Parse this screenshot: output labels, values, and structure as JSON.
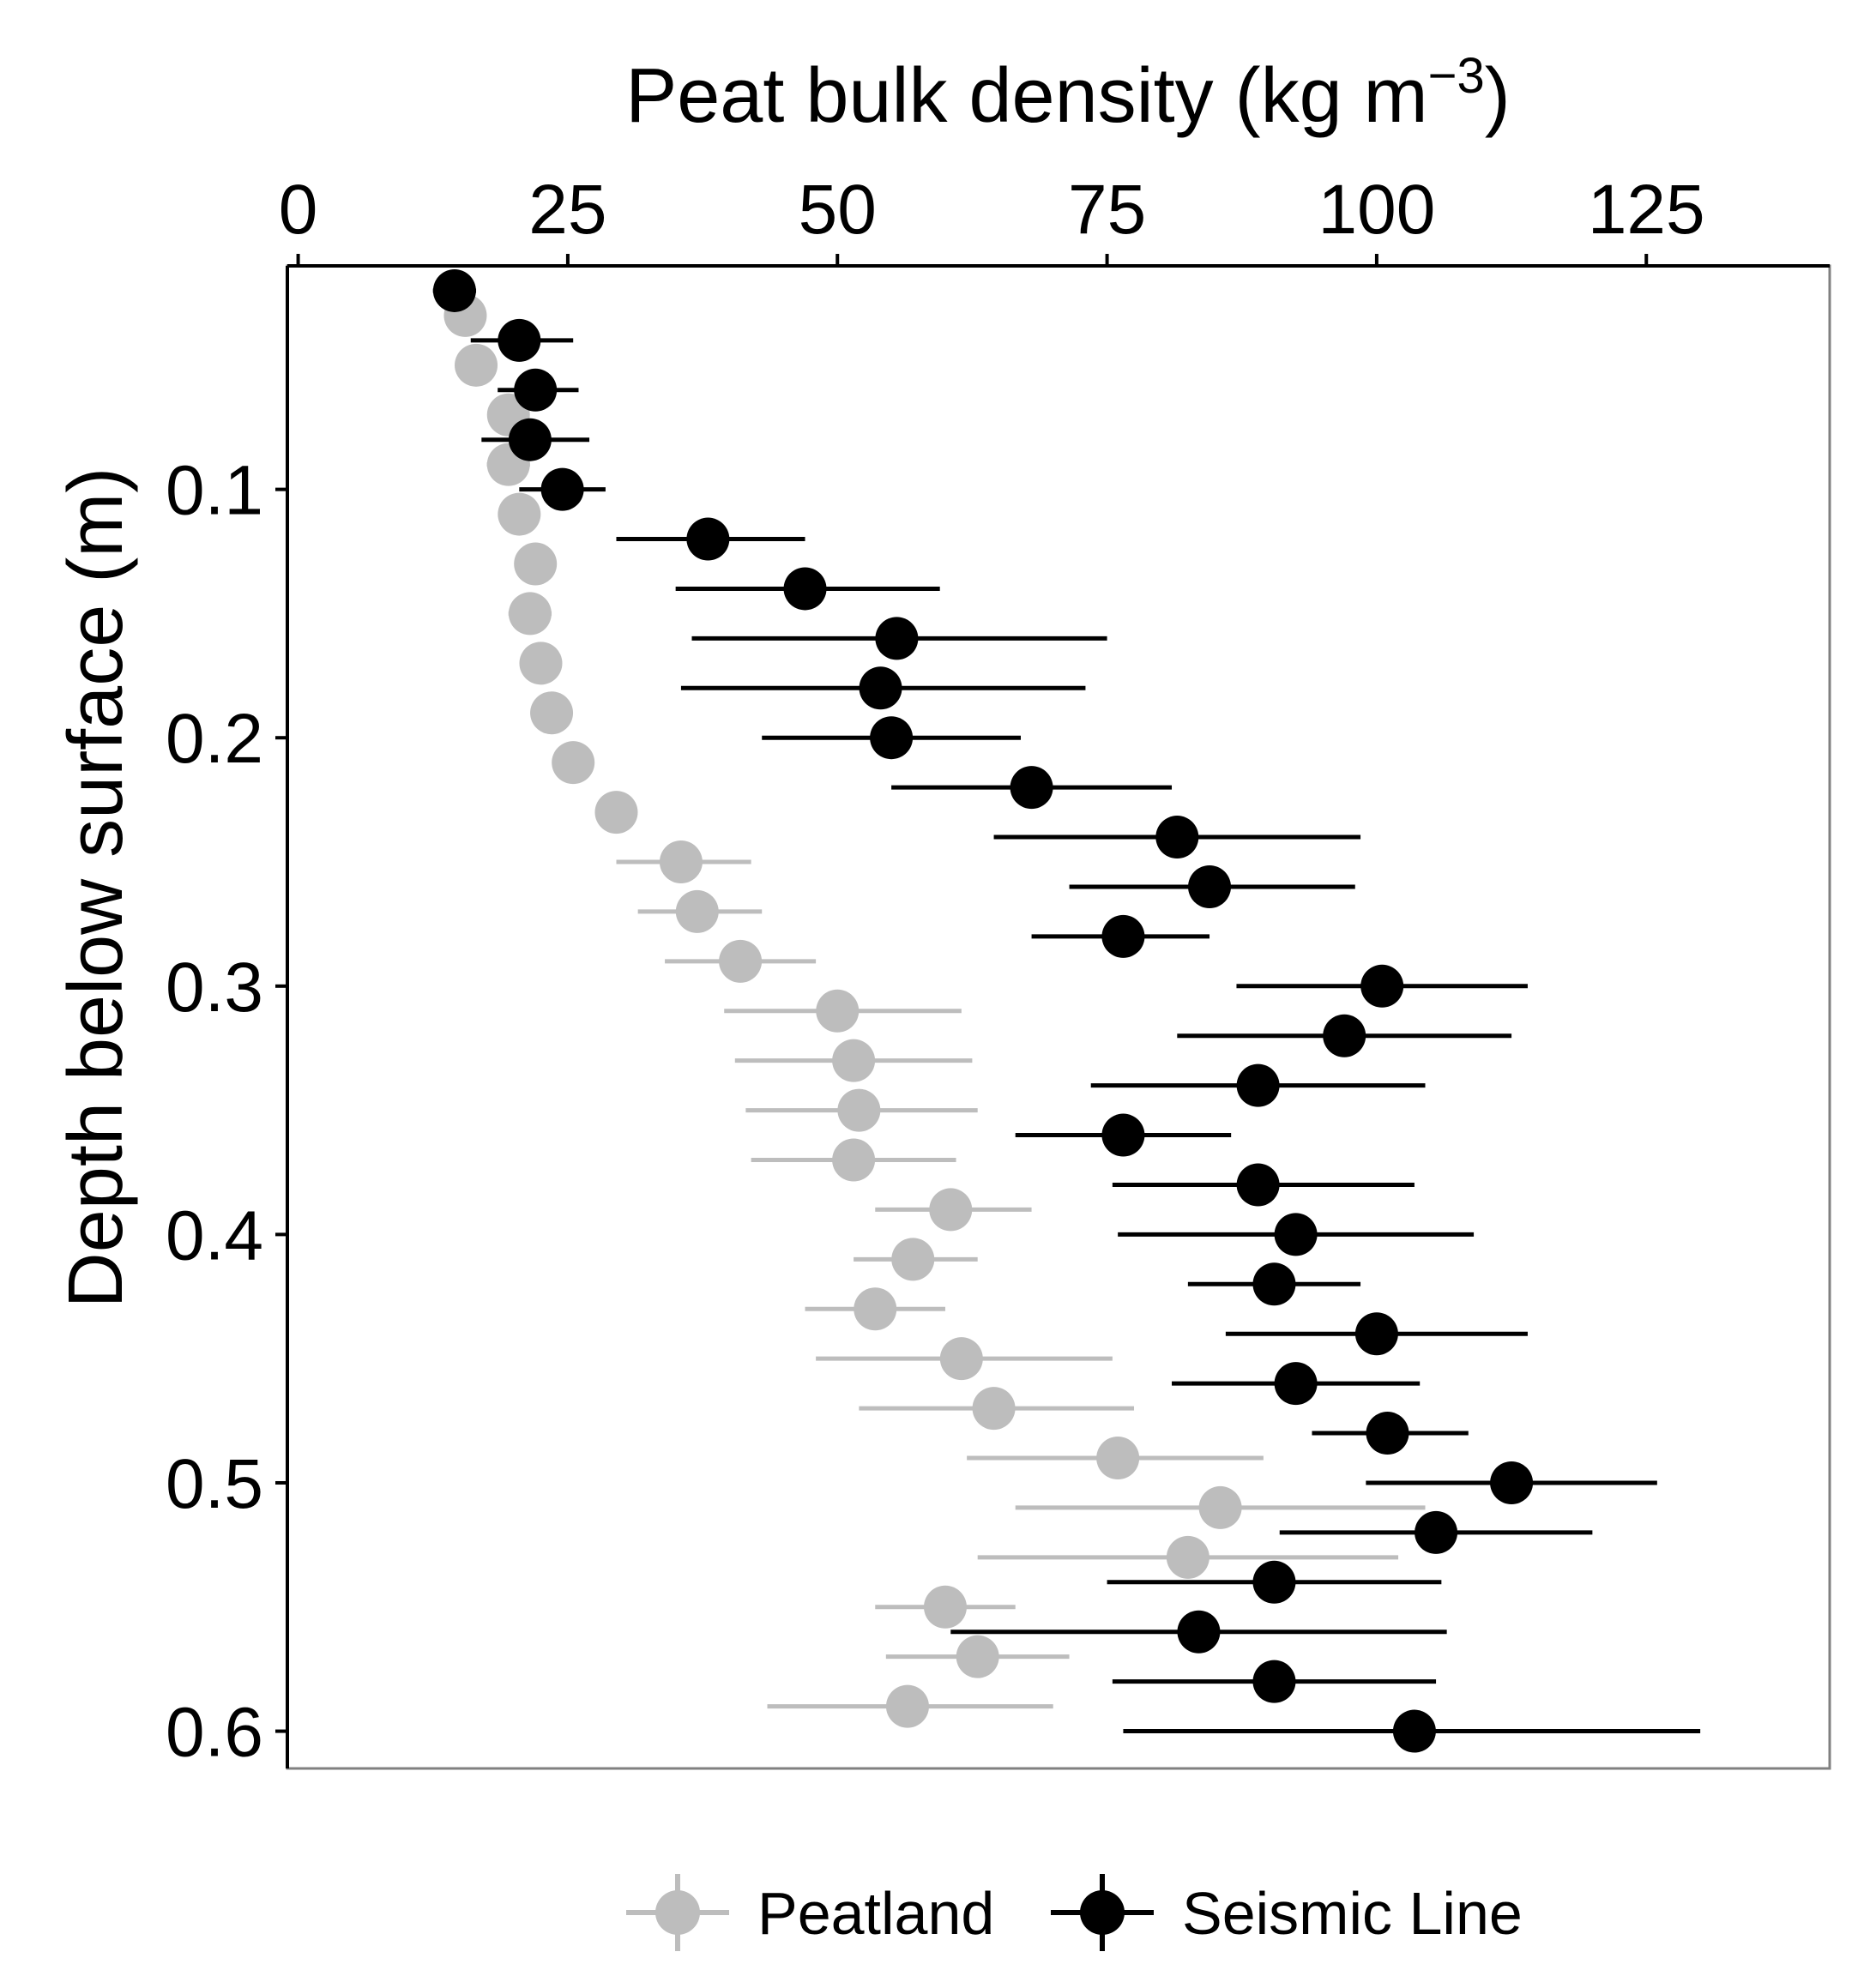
{
  "chart_data": {
    "type": "scatter",
    "subtype": "point-with-horizontal-error-bars",
    "x_axis": {
      "label_prefix": "Peat bulk density (kg m",
      "label_superscript": "−3",
      "label_suffix": ")",
      "position": "top",
      "range": [
        -1,
        142
      ],
      "ticks": [
        0,
        25,
        50,
        75,
        100,
        125
      ],
      "tick_labels": [
        "0",
        "25",
        "50",
        "75",
        "100",
        "125"
      ]
    },
    "y_axis": {
      "label": "Depth below surface (m)",
      "reversed": true,
      "range": [
        0.01,
        0.615
      ],
      "ticks": [
        0.1,
        0.2,
        0.3,
        0.4,
        0.5,
        0.6
      ],
      "tick_labels": [
        "0.1",
        "0.2",
        "0.3",
        "0.4",
        "0.5",
        "0.6"
      ]
    },
    "grid": false,
    "legend_position": "bottom",
    "series": [
      {
        "name": "Peatland",
        "color": "#bdbdbd",
        "points": [
          {
            "depth": 0.03,
            "mean": 15.5,
            "lo": 14.5,
            "hi": 17
          },
          {
            "depth": 0.05,
            "mean": 16.5,
            "lo": 16,
            "hi": 17
          },
          {
            "depth": 0.07,
            "mean": 19.5,
            "lo": 18.5,
            "hi": 20.5
          },
          {
            "depth": 0.09,
            "mean": 19.5,
            "lo": 17.5,
            "hi": 21.5
          },
          {
            "depth": 0.11,
            "mean": 20.5,
            "lo": 20,
            "hi": 21.5
          },
          {
            "depth": 0.13,
            "mean": 22,
            "lo": 21,
            "hi": 23
          },
          {
            "depth": 0.15,
            "mean": 21.5,
            "lo": 19.5,
            "hi": 23.5
          },
          {
            "depth": 0.17,
            "mean": 22.5,
            "lo": 21.5,
            "hi": 23.5
          },
          {
            "depth": 0.19,
            "mean": 23.5,
            "lo": 22.5,
            "hi": 24.5
          },
          {
            "depth": 0.21,
            "mean": 25.5,
            "lo": 24.5,
            "hi": 26.5
          },
          {
            "depth": 0.23,
            "mean": 29.5,
            "lo": 28,
            "hi": 31
          },
          {
            "depth": 0.25,
            "mean": 35.5,
            "lo": 29.5,
            "hi": 42
          },
          {
            "depth": 0.27,
            "mean": 37,
            "lo": 31.5,
            "hi": 43
          },
          {
            "depth": 0.29,
            "mean": 41,
            "lo": 34,
            "hi": 48
          },
          {
            "depth": 0.31,
            "mean": 50,
            "lo": 39.5,
            "hi": 61.5
          },
          {
            "depth": 0.33,
            "mean": 51.5,
            "lo": 40.5,
            "hi": 62.5
          },
          {
            "depth": 0.35,
            "mean": 52,
            "lo": 41.5,
            "hi": 63
          },
          {
            "depth": 0.37,
            "mean": 51.5,
            "lo": 42,
            "hi": 61
          },
          {
            "depth": 0.39,
            "mean": 60.5,
            "lo": 53.5,
            "hi": 68
          },
          {
            "depth": 0.41,
            "mean": 57,
            "lo": 51.5,
            "hi": 63
          },
          {
            "depth": 0.43,
            "mean": 53.5,
            "lo": 47,
            "hi": 60
          },
          {
            "depth": 0.45,
            "mean": 61.5,
            "lo": 48,
            "hi": 75.5
          },
          {
            "depth": 0.47,
            "mean": 64.5,
            "lo": 52,
            "hi": 77.5
          },
          {
            "depth": 0.49,
            "mean": 76,
            "lo": 62,
            "hi": 89.5
          },
          {
            "depth": 0.51,
            "mean": 85.5,
            "lo": 66.5,
            "hi": 104.5
          },
          {
            "depth": 0.53,
            "mean": 82.5,
            "lo": 63,
            "hi": 102
          },
          {
            "depth": 0.55,
            "mean": 60,
            "lo": 53.5,
            "hi": 66.5
          },
          {
            "depth": 0.57,
            "mean": 63,
            "lo": 54.5,
            "hi": 71.5
          },
          {
            "depth": 0.59,
            "mean": 56.5,
            "lo": 43.5,
            "hi": 70
          }
        ]
      },
      {
        "name": "Seismic Line",
        "color": "#000000",
        "points": [
          {
            "depth": 0.02,
            "mean": 14.5,
            "lo": 12.5,
            "hi": 16.5
          },
          {
            "depth": 0.04,
            "mean": 20.5,
            "lo": 16,
            "hi": 25.5
          },
          {
            "depth": 0.06,
            "mean": 22,
            "lo": 18.5,
            "hi": 26
          },
          {
            "depth": 0.08,
            "mean": 21.5,
            "lo": 17,
            "hi": 27
          },
          {
            "depth": 0.1,
            "mean": 24.5,
            "lo": 20.5,
            "hi": 28.5
          },
          {
            "depth": 0.12,
            "mean": 38,
            "lo": 29.5,
            "hi": 47
          },
          {
            "depth": 0.14,
            "mean": 47,
            "lo": 35,
            "hi": 59.5
          },
          {
            "depth": 0.16,
            "mean": 55.5,
            "lo": 36.5,
            "hi": 75
          },
          {
            "depth": 0.18,
            "mean": 54,
            "lo": 35.5,
            "hi": 73
          },
          {
            "depth": 0.2,
            "mean": 55,
            "lo": 43,
            "hi": 67
          },
          {
            "depth": 0.22,
            "mean": 68,
            "lo": 55,
            "hi": 81
          },
          {
            "depth": 0.24,
            "mean": 81.5,
            "lo": 64.5,
            "hi": 98.5
          },
          {
            "depth": 0.26,
            "mean": 84.5,
            "lo": 71.5,
            "hi": 98
          },
          {
            "depth": 0.28,
            "mean": 76.5,
            "lo": 68,
            "hi": 84.5
          },
          {
            "depth": 0.3,
            "mean": 100.5,
            "lo": 87,
            "hi": 114
          },
          {
            "depth": 0.32,
            "mean": 97,
            "lo": 81.5,
            "hi": 112.5
          },
          {
            "depth": 0.34,
            "mean": 89,
            "lo": 73.5,
            "hi": 104.5
          },
          {
            "depth": 0.36,
            "mean": 76.5,
            "lo": 66.5,
            "hi": 86.5
          },
          {
            "depth": 0.38,
            "mean": 89,
            "lo": 75.5,
            "hi": 103.5
          },
          {
            "depth": 0.4,
            "mean": 92.5,
            "lo": 76,
            "hi": 109
          },
          {
            "depth": 0.42,
            "mean": 90.5,
            "lo": 82.5,
            "hi": 98.5
          },
          {
            "depth": 0.44,
            "mean": 100,
            "lo": 86,
            "hi": 114
          },
          {
            "depth": 0.46,
            "mean": 92.5,
            "lo": 81,
            "hi": 104
          },
          {
            "depth": 0.48,
            "mean": 101,
            "lo": 94,
            "hi": 108.5
          },
          {
            "depth": 0.5,
            "mean": 112.5,
            "lo": 99,
            "hi": 126
          },
          {
            "depth": 0.52,
            "mean": 105.5,
            "lo": 91,
            "hi": 120
          },
          {
            "depth": 0.54,
            "mean": 90.5,
            "lo": 75,
            "hi": 106
          },
          {
            "depth": 0.56,
            "mean": 83.5,
            "lo": 60.5,
            "hi": 106.5
          },
          {
            "depth": 0.58,
            "mean": 90.5,
            "lo": 75.5,
            "hi": 105.5
          },
          {
            "depth": 0.6,
            "mean": 103.5,
            "lo": 76.5,
            "hi": 130
          }
        ]
      }
    ]
  }
}
